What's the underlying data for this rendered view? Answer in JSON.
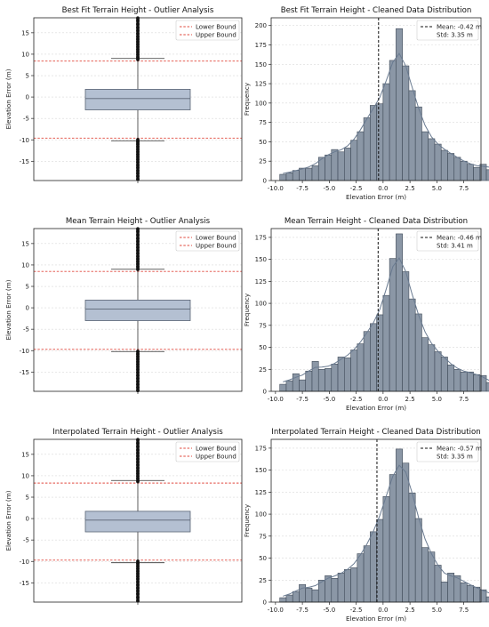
{
  "rows": [
    {
      "box": {
        "title": "Best Fit Terrain Height - Outlier Analysis",
        "ylabel": "Elevation Error (m)",
        "ylim": [
          -19.5,
          18.5
        ],
        "yticks": [
          -15,
          -10,
          -5,
          0,
          5,
          10,
          15
        ],
        "q1": -3.0,
        "median": -0.35,
        "q3": 1.8,
        "lower_bound": -9.6,
        "upper_bound": 8.4,
        "outliers_low": [
          -19.2,
          -18.5,
          -17.8,
          -17.2,
          -16.5,
          -15.9,
          -15.2,
          -14.6,
          -14.0,
          -13.4,
          -12.8,
          -12.2,
          -11.6,
          -11.0,
          -10.5,
          -10.0
        ],
        "outliers_high": [
          8.8,
          9.3,
          9.9,
          10.5,
          11.1,
          11.7,
          12.3,
          12.9,
          13.5,
          14.1,
          14.8,
          15.5,
          16.2,
          17.0,
          17.8,
          18.4
        ],
        "legend": [
          "Lower Bound",
          "Upper Bound"
        ]
      },
      "hist": {
        "title": "Best Fit Terrain Height - Cleaned Data Distribution",
        "xlabel": "Elevation Error (m)",
        "ylabel": "Frequency",
        "x_start": -9.6,
        "bin_width": 0.6,
        "counts": [
          8,
          10,
          13,
          16,
          16,
          19,
          30,
          33,
          40,
          37,
          42,
          52,
          63,
          81,
          97,
          99,
          125,
          155,
          196,
          148,
          116,
          95,
          63,
          54,
          47,
          39,
          35,
          30,
          25,
          21,
          17,
          21,
          14,
          19
        ],
        "xlim": [
          -10.4,
          9.1
        ],
        "ylim": [
          0,
          210
        ],
        "xticks": [
          -10.0,
          -7.5,
          -5.0,
          -2.5,
          0.0,
          2.5,
          5.0,
          7.5
        ],
        "yticks": [
          0,
          25,
          50,
          75,
          100,
          125,
          150,
          175,
          200
        ],
        "mean": -0.42,
        "legend_mean": "Mean: -0.42 m",
        "legend_std": "Std: 3.35 m"
      }
    },
    {
      "box": {
        "title": "Mean Terrain Height - Outlier Analysis",
        "ylabel": "Elevation Error (m)",
        "ylim": [
          -19.5,
          18.5
        ],
        "yticks": [
          -15,
          -10,
          -5,
          0,
          5,
          10,
          15
        ],
        "q1": -3.0,
        "median": -0.3,
        "q3": 1.8,
        "lower_bound": -9.7,
        "upper_bound": 8.5,
        "outliers_low": [
          -19.3,
          -18.6,
          -17.9,
          -17.2,
          -16.5,
          -15.8,
          -15.1,
          -14.4,
          -13.8,
          -13.2,
          -12.6,
          -12.0,
          -11.4,
          -10.8,
          -10.2
        ],
        "outliers_high": [
          9.0,
          9.6,
          10.2,
          10.8,
          11.4,
          12.0,
          12.7,
          13.4,
          14.1,
          14.8,
          15.5,
          16.2,
          17.0,
          17.8,
          18.4
        ],
        "legend": [
          "Lower Bound",
          "Upper Bound"
        ]
      },
      "hist": {
        "title": "Mean Terrain Height - Cleaned Data Distribution",
        "xlabel": "Elevation Error (m)",
        "ylabel": "Frequency",
        "x_start": -9.6,
        "bin_width": 0.6,
        "counts": [
          8,
          12,
          20,
          13,
          23,
          34,
          25,
          26,
          31,
          39,
          38,
          47,
          54,
          68,
          77,
          87,
          109,
          151,
          179,
          136,
          105,
          88,
          61,
          53,
          45,
          39,
          30,
          25,
          22,
          22,
          19,
          18,
          10,
          8
        ],
        "xlim": [
          -10.4,
          9.1
        ],
        "ylim": [
          0,
          185
        ],
        "xticks": [
          -10.0,
          -7.5,
          -5.0,
          -2.5,
          0.0,
          2.5,
          5.0,
          7.5
        ],
        "yticks": [
          0,
          25,
          50,
          75,
          100,
          125,
          150,
          175
        ],
        "mean": -0.46,
        "legend_mean": "Mean: -0.46 m",
        "legend_std": "Std: 3.41 m"
      }
    },
    {
      "box": {
        "title": "Interpolated Terrain Height - Outlier Analysis",
        "ylabel": "Elevation Error (m)",
        "ylim": [
          -19.5,
          18.5
        ],
        "yticks": [
          -15,
          -10,
          -5,
          0,
          5,
          10,
          15
        ],
        "q1": -3.1,
        "median": -0.35,
        "q3": 1.7,
        "lower_bound": -9.7,
        "upper_bound": 8.3,
        "outliers_low": [
          -19.2,
          -18.4,
          -17.6,
          -16.9,
          -16.2,
          -15.5,
          -14.8,
          -14.1,
          -13.5,
          -12.9,
          -12.3,
          -11.7,
          -11.1,
          -10.5,
          -10.0
        ],
        "outliers_high": [
          8.7,
          9.3,
          9.9,
          10.5,
          11.1,
          11.8,
          12.5,
          13.2,
          13.9,
          14.6,
          15.3,
          16.0,
          16.8,
          17.6,
          18.4
        ],
        "legend": [
          "Lower Bound",
          "Upper Bound"
        ]
      },
      "hist": {
        "title": "Interpolated Terrain Height - Cleaned Data Distribution",
        "xlabel": "Elevation Error (m)",
        "ylabel": "Frequency",
        "x_start": -9.6,
        "bin_width": 0.6,
        "counts": [
          5,
          8,
          12,
          20,
          16,
          14,
          25,
          30,
          27,
          33,
          37,
          39,
          55,
          64,
          80,
          94,
          120,
          145,
          174,
          158,
          124,
          95,
          62,
          57,
          42,
          23,
          33,
          30,
          22,
          19,
          17,
          14,
          6,
          11
        ],
        "xlim": [
          -10.4,
          9.1
        ],
        "ylim": [
          0,
          185
        ],
        "xticks": [
          -10.0,
          -7.5,
          -5.0,
          -2.5,
          0.0,
          2.5,
          5.0,
          7.5
        ],
        "yticks": [
          0,
          25,
          50,
          75,
          100,
          125,
          150,
          175
        ],
        "mean": -0.57,
        "legend_mean": "Mean: -0.57 m",
        "legend_std": "Std: 3.35 m"
      }
    }
  ],
  "chart_data": [
    {
      "type": "box",
      "title": "Best Fit Terrain Height - Outlier Analysis",
      "ylabel": "Elevation Error (m)",
      "q1": -3.0,
      "median": -0.35,
      "q3": 1.8,
      "lower_bound": -9.6,
      "upper_bound": 8.4,
      "ylim": [
        -19.5,
        18.5
      ]
    },
    {
      "type": "bar",
      "title": "Best Fit Terrain Height - Cleaned Data Distribution",
      "xlabel": "Elevation Error (m)",
      "ylabel": "Frequency",
      "mean": -0.42,
      "std": 3.35
    },
    {
      "type": "box",
      "title": "Mean Terrain Height - Outlier Analysis",
      "ylabel": "Elevation Error (m)",
      "q1": -3.0,
      "median": -0.3,
      "q3": 1.8,
      "lower_bound": -9.7,
      "upper_bound": 8.5,
      "ylim": [
        -19.5,
        18.5
      ]
    },
    {
      "type": "bar",
      "title": "Mean Terrain Height - Cleaned Data Distribution",
      "xlabel": "Elevation Error (m)",
      "ylabel": "Frequency",
      "mean": -0.46,
      "std": 3.41
    },
    {
      "type": "box",
      "title": "Interpolated Terrain Height - Outlier Analysis",
      "ylabel": "Elevation Error (m)",
      "q1": -3.1,
      "median": -0.35,
      "q3": 1.7,
      "lower_bound": -9.7,
      "upper_bound": 8.3,
      "ylim": [
        -19.5,
        18.5
      ]
    },
    {
      "type": "bar",
      "title": "Interpolated Terrain Height - Cleaned Data Distribution",
      "xlabel": "Elevation Error (m)",
      "ylabel": "Frequency",
      "mean": -0.57,
      "std": 3.35
    }
  ],
  "colors": {
    "box_fill": "#b4c0d2",
    "box_edge": "#5a6475",
    "bar_fill": "#8b97a6",
    "bar_edge": "#3f4a58",
    "kde_line": "#6a7b91",
    "bound_line": "#e0483d",
    "mean_line": "#111111",
    "grid": "#d9d9d9"
  }
}
